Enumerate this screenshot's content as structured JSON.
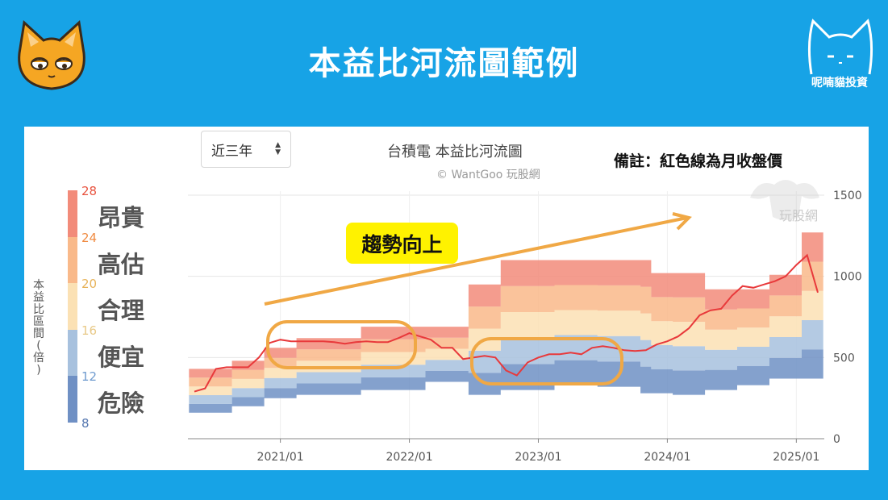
{
  "header": {
    "title": "本益比河流圖範例",
    "brand": "呢喃貓投資"
  },
  "controls": {
    "range_label": "近三年"
  },
  "chart_header": {
    "title": "台積電 本益比河流圖",
    "credit": "© WantGoo 玩股網",
    "note": "備註：紅色線為月收盤價",
    "watermark": "玩股網"
  },
  "legend": {
    "axis_title": "本益比區間(倍)",
    "bands": [
      {
        "label": "昂貴",
        "color": "#f28b7a"
      },
      {
        "label": "高估",
        "color": "#f9b98a"
      },
      {
        "label": "合理",
        "color": "#fbe1b4"
      },
      {
        "label": "便宜",
        "color": "#a7c1de"
      },
      {
        "label": "危險",
        "color": "#6f90c4"
      }
    ],
    "ticks": [
      {
        "label": "28",
        "color": "#e8533f"
      },
      {
        "label": "24",
        "color": "#f08b42"
      },
      {
        "label": "20",
        "color": "#e7b35a"
      },
      {
        "label": "16",
        "color": "#e8c987"
      },
      {
        "label": "12",
        "color": "#6f9bcf"
      },
      {
        "label": "8",
        "color": "#5577b0"
      }
    ]
  },
  "annotations": {
    "trend_label": "趨勢向上"
  },
  "chart_data": {
    "type": "area",
    "title": "台積電 本益比河流圖",
    "x_ticks": [
      "2021/01",
      "2022/01",
      "2023/01",
      "2024/01",
      "2025/01"
    ],
    "y_ticks": [
      "0",
      "500",
      "1000",
      "1500"
    ],
    "ylim": [
      0,
      1500
    ],
    "x_range": [
      "2020/05",
      "2025/03"
    ],
    "months": [
      "2020/05",
      "2020/06",
      "2020/07",
      "2020/08",
      "2020/09",
      "2020/10",
      "2020/11",
      "2020/12",
      "2021/01",
      "2021/02",
      "2021/03",
      "2021/04",
      "2021/05",
      "2021/06",
      "2021/07",
      "2021/08",
      "2021/09",
      "2021/10",
      "2021/11",
      "2021/12",
      "2022/01",
      "2022/02",
      "2022/03",
      "2022/04",
      "2022/05",
      "2022/06",
      "2022/07",
      "2022/08",
      "2022/09",
      "2022/10",
      "2022/11",
      "2022/12",
      "2023/01",
      "2023/02",
      "2023/03",
      "2023/04",
      "2023/05",
      "2023/06",
      "2023/07",
      "2023/08",
      "2023/09",
      "2023/10",
      "2023/11",
      "2023/12",
      "2024/01",
      "2024/02",
      "2024/03",
      "2024/04",
      "2024/05",
      "2024/06",
      "2024/07",
      "2024/08",
      "2024/09",
      "2024/10",
      "2024/11",
      "2024/12",
      "2025/01",
      "2025/02",
      "2025/03"
    ],
    "quarterly_bands_pe": [
      8,
      12,
      16,
      20,
      24,
      28
    ],
    "series": [
      {
        "name": "月收盤價",
        "color": "#e8393b",
        "values": [
          290,
          310,
          430,
          440,
          440,
          440,
          500,
          590,
          610,
          600,
          600,
          600,
          600,
          595,
          585,
          595,
          600,
          595,
          595,
          620,
          650,
          630,
          610,
          560,
          560,
          490,
          500,
          510,
          500,
          420,
          390,
          470,
          500,
          520,
          520,
          530,
          520,
          560,
          570,
          560,
          545,
          540,
          545,
          580,
          600,
          630,
          680,
          760,
          790,
          800,
          880,
          940,
          930,
          950,
          970,
          1000,
          1070,
          1130,
          900
        ]
      },
      {
        "name": "band_8x",
        "values": [
          160,
          160,
          160,
          160,
          200,
          200,
          200,
          250,
          250,
          250,
          270,
          270,
          270,
          270,
          270,
          270,
          300,
          300,
          300,
          300,
          300,
          300,
          350,
          350,
          350,
          350,
          270,
          270,
          270,
          300,
          300,
          300,
          300,
          300,
          330,
          330,
          330,
          330,
          320,
          320,
          320,
          320,
          280,
          280,
          280,
          270,
          270,
          270,
          300,
          300,
          300,
          330,
          330,
          330,
          370,
          370,
          370,
          370,
          370
        ]
      },
      {
        "name": "band_28x",
        "values": [
          430,
          430,
          430,
          430,
          480,
          480,
          480,
          560,
          560,
          560,
          620,
          620,
          620,
          620,
          620,
          620,
          690,
          690,
          690,
          690,
          690,
          690,
          690,
          690,
          690,
          690,
          950,
          950,
          950,
          1100,
          1100,
          1100,
          1100,
          1100,
          1100,
          1100,
          1100,
          1100,
          1100,
          1100,
          1100,
          1100,
          1100,
          1020,
          1020,
          1020,
          1020,
          1020,
          920,
          920,
          920,
          920,
          920,
          920,
          1010,
          1010,
          1010,
          1270,
          1270
        ]
      }
    ]
  }
}
